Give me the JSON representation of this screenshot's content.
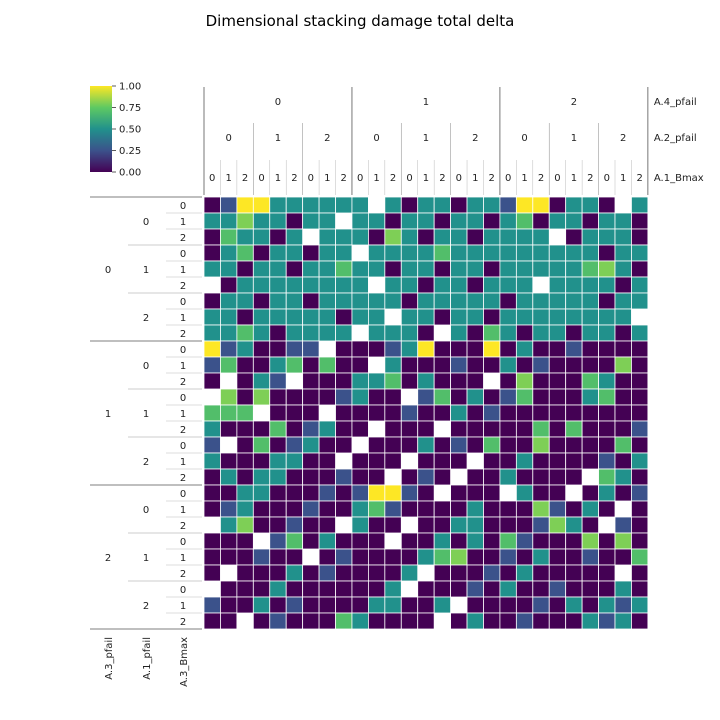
{
  "chart_data": {
    "type": "heatmap",
    "title": "Dimensional stacking damage total delta",
    "row_factors": [
      "A.3_pfail",
      "A.1_pfail",
      "A.3_Bmax"
    ],
    "col_factors": [
      "A.4_pfail",
      "A.2_pfail",
      "A.1_Bmax"
    ],
    "levels": [
      "0",
      "1",
      "2"
    ],
    "colorbar": {
      "colormap": "viridis",
      "range": [
        0.0,
        1.0
      ],
      "ticks": [
        "0.00",
        "0.25",
        "0.50",
        "0.75",
        "1.00"
      ]
    },
    "colors": {
      "empty": "#ffffff",
      "grid": "#ffffff",
      "axis": "#555555"
    },
    "cells": [
      "ab1a9ab.abaa.5aa...3.a5.a.a...aaaa",
      "aaaaa88aa.aa7aa.a.aa7aaa7a.a.a.aaa.a.aa7aa.aaaaaa.aaaa",
      "a00a7aaaa8aa5....a.a..a.8a.aa5aa.7aa.55..a.a..a.a8a.5",
      "5aaa7aa7aa.a.a8a.a8aa..a..a.aaa7a.aa.aa.7aa.a.a.aa7aa",
      "aaa.aaa.aa.aa7a7a7a.7aaaa.a.a.a.aa.aaaa.a.aa.a.aaa7a8a",
      "7a.a7.aaaa.aa.aa..a.a.7aa.a.a..a.a.a.aaa.a..a..aa.a.a.",
      "aaa8aaaaa.aaa7aaa.a.a7aa.a.aa.a.a.a..aa.aaa.aaaa.7a.",
      "5a.aaa.a.aaaa.aa5.aaa.aa5aa.a.aa.a.a.a.a.a.a.a.5.a.aa",
      "a.aa.aa.aa.a7a5aaa.5aa.5aa.a.a.a.aaa.aa.aa7aa.a.a.aaa"
    ]
  }
}
